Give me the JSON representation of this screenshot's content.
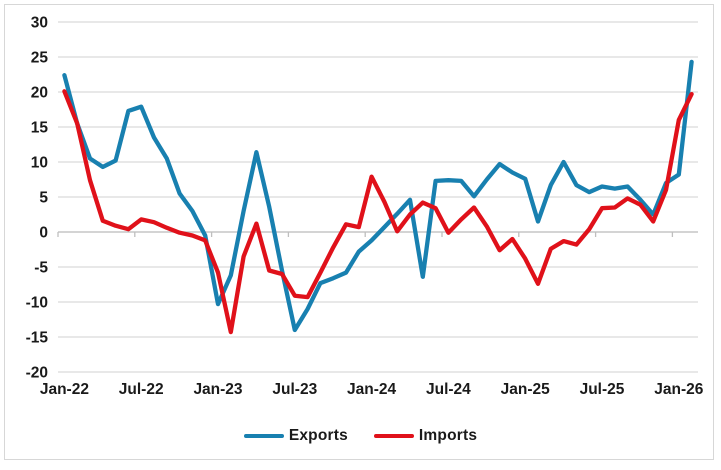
{
  "chart_data": {
    "type": "line",
    "title": "",
    "categories": [
      "Jan-22",
      "Feb-22",
      "Mar-22",
      "Apr-22",
      "May-22",
      "Jun-22",
      "Jul-22",
      "Aug-22",
      "Sep-22",
      "Oct-22",
      "Nov-22",
      "Dec-22",
      "Jan-23",
      "Feb-23",
      "Mar-23",
      "Apr-23",
      "May-23",
      "Jun-23",
      "Jul-23",
      "Aug-23",
      "Sep-23",
      "Oct-23",
      "Nov-23",
      "Dec-23",
      "Jan-24",
      "Feb-24",
      "Mar-24",
      "Apr-24",
      "May-24",
      "Jun-24",
      "Jul-24",
      "Aug-24",
      "Sep-24",
      "Oct-24",
      "Nov-24",
      "Dec-24",
      "Jan-25",
      "Feb-25",
      "Mar-25",
      "Apr-25",
      "May-25",
      "Jun-25",
      "Jul-25",
      "Aug-25",
      "Sep-25",
      "Oct-25",
      "Nov-25",
      "Dec-25",
      "Jan-26",
      "Feb-26"
    ],
    "series": [
      {
        "name": "Exports",
        "color": "#1880B0",
        "values": [
          22.4,
          15.5,
          10.5,
          9.3,
          10.2,
          17.3,
          17.9,
          13.5,
          10.5,
          5.5,
          3.0,
          -0.5,
          -10.3,
          -6.2,
          3.0,
          11.4,
          3.6,
          -5.5,
          -14.0,
          -11.0,
          -7.3,
          -6.6,
          -5.8,
          -2.8,
          -1.2,
          0.7,
          2.6,
          4.6,
          -6.4,
          7.3,
          7.4,
          7.3,
          5.1,
          7.5,
          9.7,
          8.5,
          7.6,
          1.5,
          6.7,
          10.0,
          6.7,
          5.7,
          6.5,
          6.2,
          6.5,
          4.6,
          2.5,
          7.0,
          8.2,
          24.3
        ]
      },
      {
        "name": "Imports",
        "color": "#E0111A",
        "values": [
          20.1,
          15.5,
          7.4,
          1.6,
          0.9,
          0.4,
          1.8,
          1.4,
          0.6,
          -0.1,
          -0.5,
          -1.2,
          -5.8,
          -14.3,
          -3.5,
          1.2,
          -5.5,
          -6.0,
          -9.1,
          -9.3,
          -5.8,
          -2.2,
          1.1,
          0.7,
          7.9,
          4.3,
          0.1,
          2.5,
          4.2,
          3.4,
          -0.1,
          1.8,
          3.5,
          0.8,
          -2.6,
          -1.0,
          -3.8,
          -7.4,
          -2.4,
          -1.3,
          -1.8,
          0.4,
          3.4,
          3.5,
          4.8,
          3.9,
          1.5,
          6.0,
          16.0,
          19.7
        ]
      }
    ],
    "xlabel": "",
    "ylabel": "",
    "ylim": [
      -20,
      30
    ],
    "ytick_step": 5,
    "y_tick_labels": [
      "30",
      "25",
      "20",
      "15",
      "10",
      "5",
      "0",
      "-5",
      "-10",
      "-15",
      "-20"
    ],
    "x_tick_labels": [
      "Jan-22",
      "Jul-22",
      "Jan-23",
      "Jul-23",
      "Jan-24",
      "Jul-24",
      "Jan-25",
      "Jul-25",
      "Jan-26"
    ],
    "x_ticks_every_n_categories": 6,
    "grid": true,
    "legend_position": "bottom"
  },
  "legend": {
    "exports_label": "Exports",
    "imports_label": "Imports"
  },
  "colors": {
    "exports_line": "#1880B0",
    "imports_line": "#E0111A",
    "gridline": "#D9D9D9",
    "axis_line": "#BFBFBF",
    "tick_label": "#1A1A1A",
    "chart_border": "#D7D7D7",
    "background": "#FFFFFF"
  }
}
